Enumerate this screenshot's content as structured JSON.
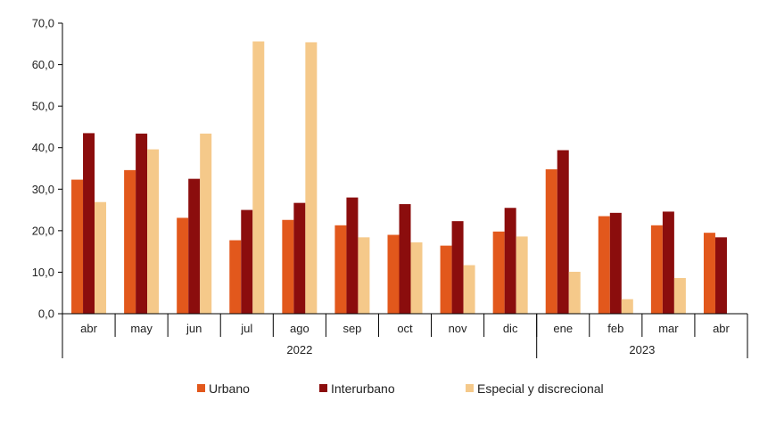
{
  "chart_data": {
    "type": "bar",
    "categories": [
      "abr",
      "may",
      "jun",
      "jul",
      "ago",
      "sep",
      "oct",
      "nov",
      "dic",
      "ene",
      "feb",
      "mar",
      "abr"
    ],
    "groups": [
      {
        "label": "2022",
        "span": 9
      },
      {
        "label": "2023",
        "span": 4
      }
    ],
    "series": [
      {
        "name": "Urbano",
        "color": "#E2581C",
        "values": [
          32.3,
          34.6,
          23.1,
          17.7,
          22.6,
          21.3,
          19.0,
          16.4,
          19.8,
          34.8,
          23.5,
          21.3,
          19.5
        ]
      },
      {
        "name": "Interurbano",
        "color": "#8B0D0D",
        "values": [
          43.5,
          43.4,
          32.5,
          25.0,
          26.7,
          28.0,
          26.4,
          22.3,
          25.5,
          39.4,
          24.3,
          24.6,
          18.4
        ]
      },
      {
        "name": "Especial y discrecional",
        "color": "#F5C98A",
        "values": [
          26.9,
          39.6,
          43.4,
          65.6,
          65.4,
          18.4,
          17.2,
          11.7,
          18.6,
          10.1,
          3.5,
          8.6,
          null
        ]
      }
    ],
    "ylim": [
      0,
      70
    ],
    "yticks": [
      "0,0",
      "10,0",
      "20,0",
      "30,0",
      "40,0",
      "50,0",
      "60,0",
      "70,0"
    ],
    "grid": false,
    "legend_position": "bottom",
    "title": "",
    "xlabel": "",
    "ylabel": ""
  }
}
